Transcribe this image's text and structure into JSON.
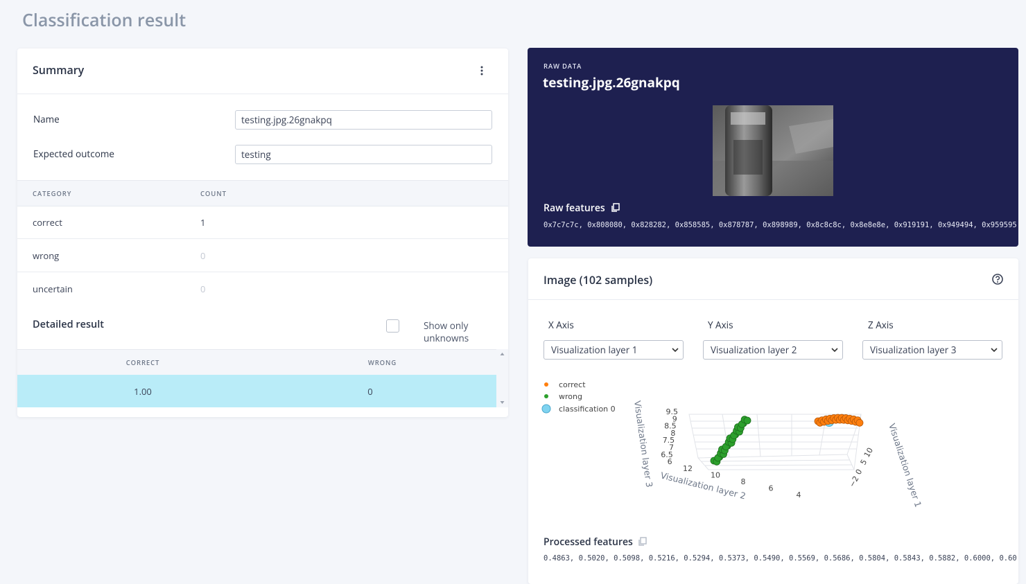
{
  "page_title": "Classification result",
  "summary": {
    "title": "Summary",
    "fields": [
      {
        "label": "Name",
        "value": "testing.jpg.26gnakpq"
      },
      {
        "label": "Expected outcome",
        "value": "testing"
      }
    ],
    "table": {
      "headers": [
        "CATEGORY",
        "COUNT"
      ],
      "rows": [
        [
          "correct",
          "1"
        ],
        [
          "wrong",
          "0"
        ],
        [
          "uncertain",
          "0"
        ]
      ]
    },
    "detailed": {
      "title": "Detailed result",
      "filter": "Show only unknowns",
      "headers": [
        "CORRECT",
        "WRONG"
      ],
      "rows": [
        [
          "1.00",
          "0"
        ]
      ]
    }
  },
  "raw": {
    "label": "RAW DATA",
    "title": "testing.jpg.26gnakpq",
    "features_title": "Raw features",
    "features": "0x7c7c7c, 0x808080, 0x828282, 0x858585, 0x878787, 0x898989, 0x8c8c8c, 0x8e8e8e, 0x919191, 0x949494, 0x959595"
  },
  "viz": {
    "title": "Image (102 samples)",
    "axes": [
      {
        "label": "X Axis",
        "selected": "Visualization layer 1"
      },
      {
        "label": "Y Axis",
        "selected": "Visualization layer 2"
      },
      {
        "label": "Z Axis",
        "selected": "Visualization layer 3"
      }
    ],
    "legend": [
      "correct",
      "wrong",
      "classification 0"
    ],
    "axis_titles": [
      "Visualization layer 1",
      "Visualization layer 2",
      "Visualization layer 3"
    ],
    "z_ticks": [
      "9.5",
      "9",
      "8.5",
      "8",
      "7.5",
      "7",
      "6.5",
      "6"
    ],
    "y_ticks": [
      "12",
      "10",
      "8",
      "6",
      "4"
    ],
    "x_ticks": [
      "10",
      "5",
      "0",
      "−2"
    ]
  },
  "processed": {
    "title": "Processed features",
    "features": "0.4863, 0.5020, 0.5098, 0.5216, 0.5294, 0.5373, 0.5490, 0.5569, 0.5686, 0.5804, 0.5843, 0.5882, 0.6000, 0.60"
  }
}
